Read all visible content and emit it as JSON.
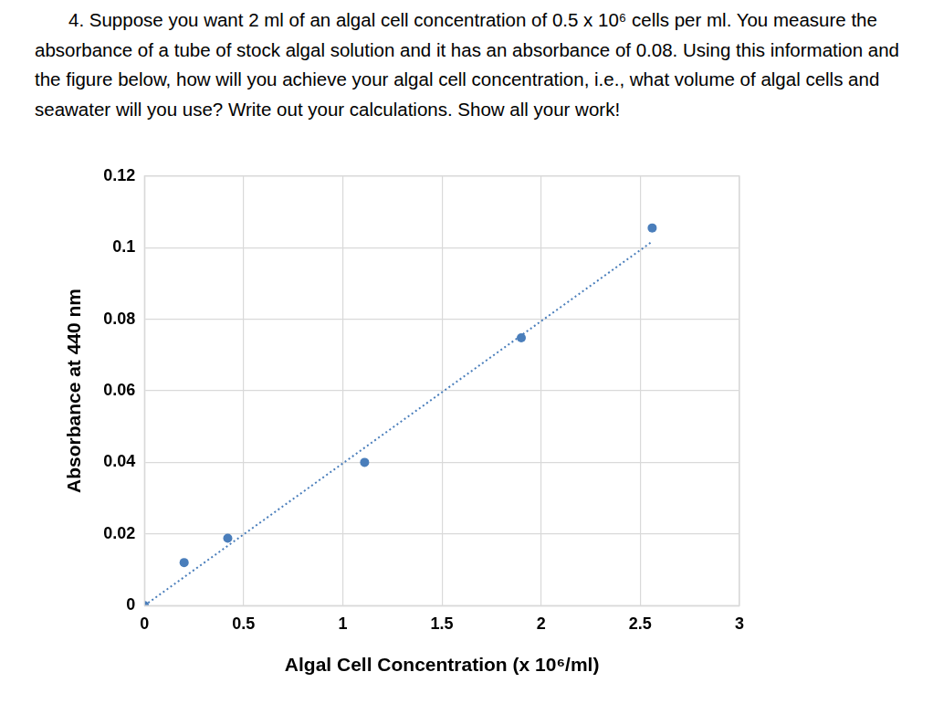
{
  "question": {
    "number": "4.",
    "text": "Suppose you want 2 ml of an algal cell concentration of 0.5 x 10⁶ cells per ml. You measure the absorbance of a tube of stock algal solution and it has an absorbance of 0.08. Using this information and the figure below, how will you achieve your algal cell concentration, i.e., what volume of algal cells and seawater will you use? Write out your calculations. Show all your work!"
  },
  "chart_data": {
    "type": "scatter",
    "x_label": "Algal Cell Concentration (x 10⁶/ml)",
    "y_label": "Absorbance at 440 nm",
    "xlim": [
      0,
      3
    ],
    "xticks": [
      0,
      0.5,
      1,
      1.5,
      2,
      2.5,
      3
    ],
    "ylim": [
      0,
      0.12
    ],
    "yticks": [
      0,
      0.02,
      0.04,
      0.06,
      0.08,
      0.1,
      0.12
    ],
    "grid": true,
    "series": [
      {
        "type": "scatter",
        "marker": "circle",
        "color": "#4a7ebb",
        "x": [
          0,
          0.2,
          0.42,
          1.11,
          1.9,
          2.56
        ],
        "values": [
          0,
          0.012,
          0.0188,
          0.04,
          0.0748,
          0.1055
        ]
      },
      {
        "type": "line",
        "line_style": "dotted",
        "color": "#4a7ebb",
        "x": [
          0,
          2.56
        ],
        "values": [
          0,
          0.1017
        ]
      }
    ]
  }
}
